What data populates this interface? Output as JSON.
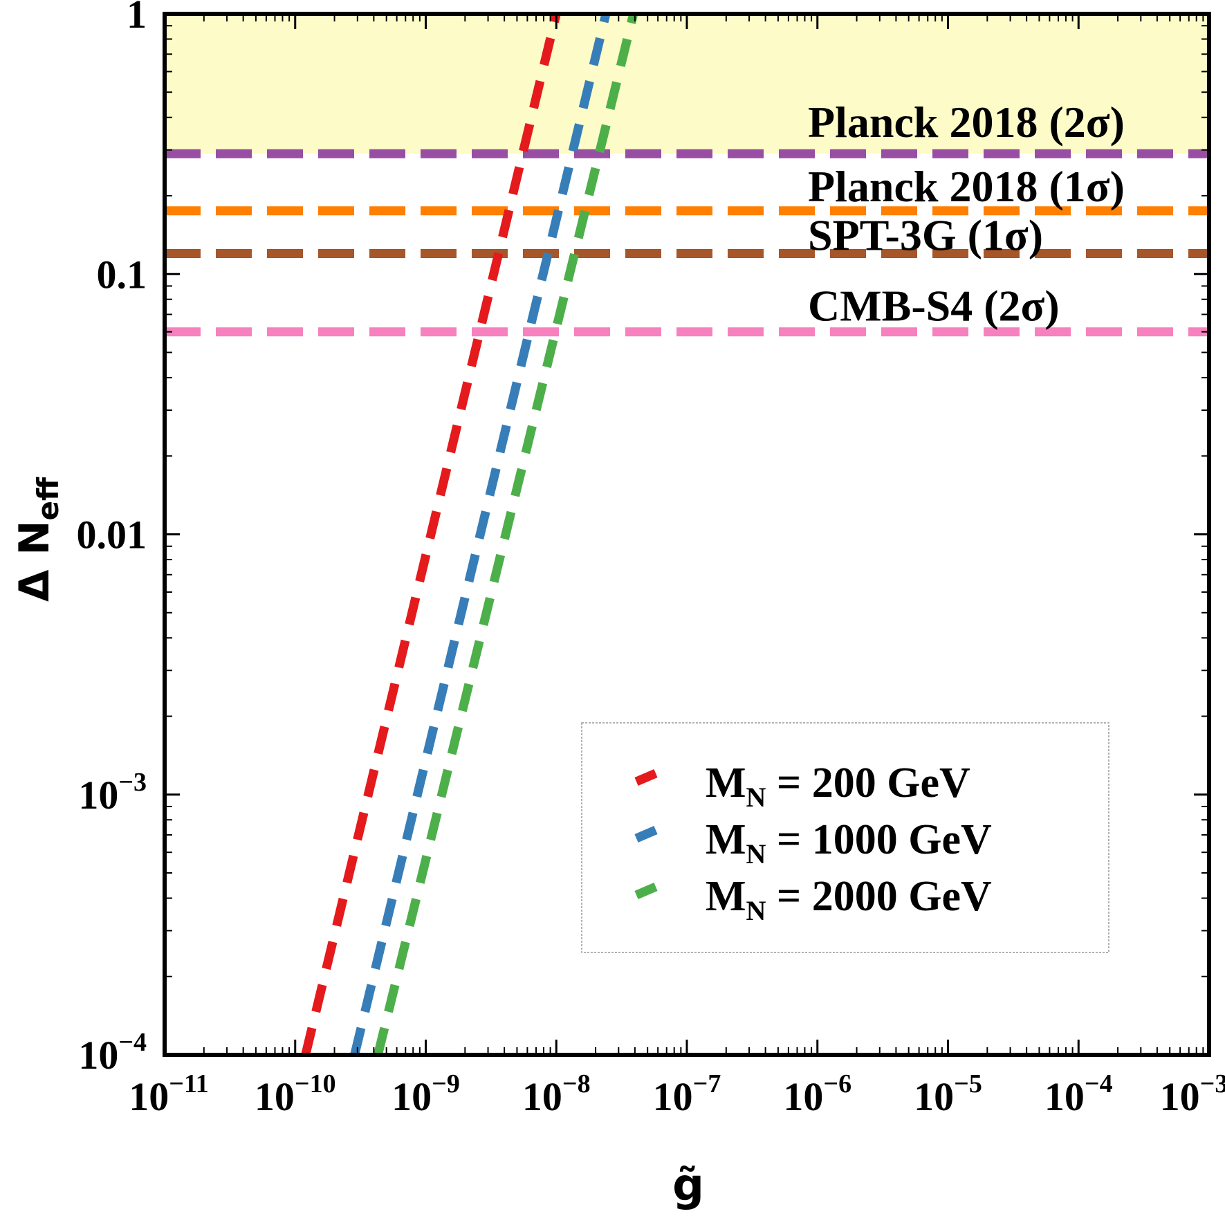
{
  "chart_data": {
    "type": "line",
    "xlabel": "g̃",
    "ylabel": {
      "main": "Δ N",
      "sub": "eff"
    },
    "x_scale": "log",
    "y_scale": "log",
    "xlim": [
      1e-11,
      0.001
    ],
    "ylim": [
      0.0001,
      1
    ],
    "x_ticks": [
      {
        "value": 1e-11,
        "base": "10",
        "exp": "−11"
      },
      {
        "value": 1e-10,
        "base": "10",
        "exp": "−10"
      },
      {
        "value": 1e-09,
        "base": "10",
        "exp": "−9"
      },
      {
        "value": 1e-08,
        "base": "10",
        "exp": "−8"
      },
      {
        "value": 1e-07,
        "base": "10",
        "exp": "−7"
      },
      {
        "value": 1e-06,
        "base": "10",
        "exp": "−6"
      },
      {
        "value": 1e-05,
        "base": "10",
        "exp": "−5"
      },
      {
        "value": 0.0001,
        "base": "10",
        "exp": "−4"
      },
      {
        "value": 0.001,
        "base": "10",
        "exp": "−3"
      }
    ],
    "y_ticks": [
      {
        "value": 1,
        "label": "1",
        "base": "",
        "exp": ""
      },
      {
        "value": 0.1,
        "label": "0.1",
        "base": "",
        "exp": ""
      },
      {
        "value": 0.01,
        "label": "0.01",
        "base": "",
        "exp": ""
      },
      {
        "value": 0.001,
        "label": "",
        "base": "10",
        "exp": "−3"
      },
      {
        "value": 0.0001,
        "label": "",
        "base": "10",
        "exp": "−4"
      }
    ],
    "excluded_region": {
      "y_min": 0.29,
      "y_max": 1,
      "color": "#fdfcc8"
    },
    "hlines": [
      {
        "name": "Planck 2018 (2σ)",
        "y": 0.29,
        "color": "#984ea3",
        "label_y": 0.38
      },
      {
        "name": "Planck 2018 (1σ)",
        "y": 0.175,
        "color": "#ff7f00",
        "label_y": 0.215
      },
      {
        "name": "SPT-3G (1σ)",
        "y": 0.12,
        "color": "#a65628",
        "label_y": 0.14
      },
      {
        "name": "CMB-S4 (2σ)",
        "y": 0.06,
        "color": "#f781bf",
        "label_y": 0.075
      }
    ],
    "series": [
      {
        "legend_base": "M",
        "legend_sub": "N",
        "legend_rest": " = 200 GeV",
        "color": "#e41a1c",
        "points": [
          [
            1.2e-10,
            0.0001
          ],
          [
            1e-08,
            1
          ]
        ]
      },
      {
        "legend_base": "M",
        "legend_sub": "N",
        "legend_rest": " = 1000 GeV",
        "color": "#377eb8",
        "points": [
          [
            2.85e-10,
            0.0001
          ],
          [
            2.4e-08,
            1
          ]
        ]
      },
      {
        "legend_base": "M",
        "legend_sub": "N",
        "legend_rest": " = 2000 GeV",
        "color": "#4daf4a",
        "points": [
          [
            4.3e-10,
            0.0001
          ],
          [
            3.9e-08,
            1
          ]
        ]
      }
    ],
    "legend_position": "lower-right",
    "grid": false
  }
}
